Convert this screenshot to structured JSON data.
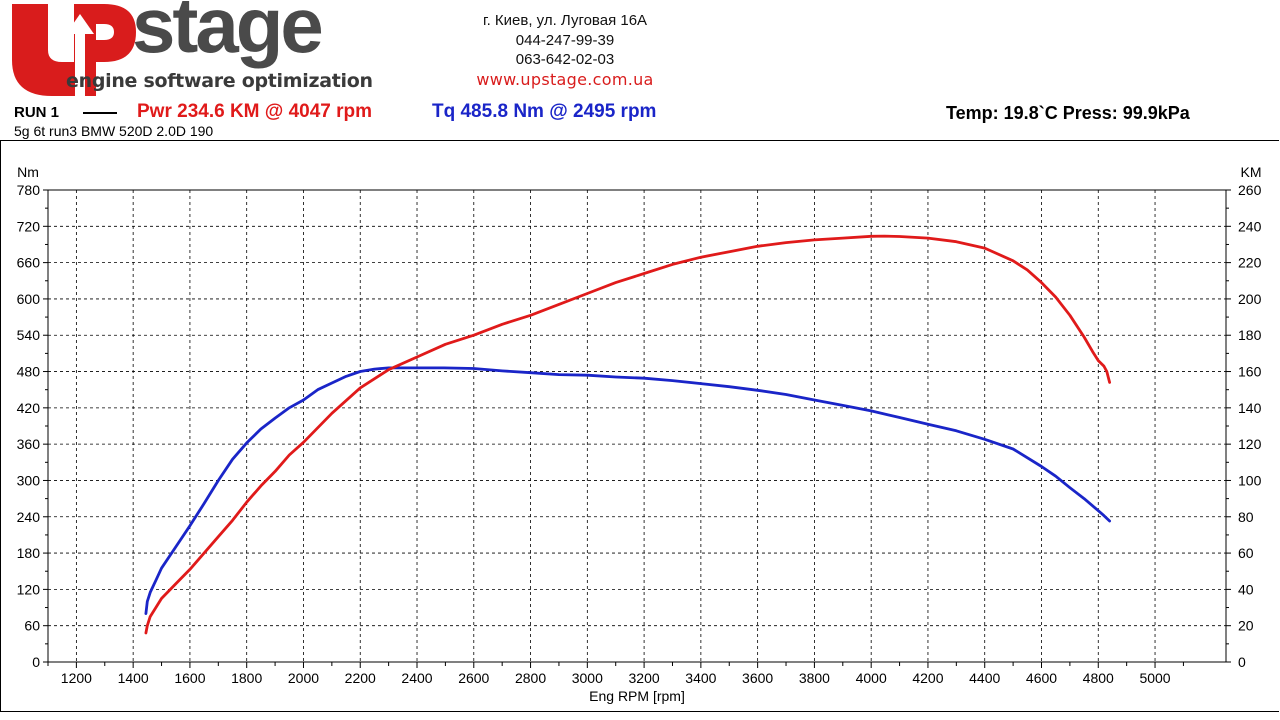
{
  "header": {
    "logo_brand": "stage",
    "logo_tagline": "engine software optimization",
    "contact": {
      "address": "г. Киев, ул. Луговая 16А",
      "phone1": "044-247-99-39",
      "phone2": "063-642-02-03",
      "website": "www.upstage.com.ua"
    }
  },
  "run": {
    "label": "RUN 1",
    "power_summary": "Pwr  234.6 KM @ 4047 rpm",
    "torque_summary": "Tq 485.8 Nm @ 2495 rpm",
    "environment": "Temp: 19.8`C    Press: 99.9kPa",
    "car": "5g 6t run3 BMW 520D 2.0D 190"
  },
  "colors": {
    "power": "#e01a1a",
    "torque": "#1a25c8",
    "brand_red": "#d91c1c",
    "logo_gray": "#4a4a4a"
  },
  "chart_data": {
    "type": "line",
    "xlabel": "Eng RPM [rpm]",
    "ylabel_left": "Nm",
    "ylabel_right": "KM",
    "xlim": [
      1100,
      5250
    ],
    "x_ticks": [
      1200,
      1400,
      1600,
      1800,
      2000,
      2200,
      2400,
      2600,
      2800,
      3000,
      3200,
      3400,
      3600,
      3800,
      4000,
      4200,
      4400,
      4600,
      4800,
      5000
    ],
    "ylim_left": [
      0,
      780
    ],
    "y_ticks_left": [
      0,
      60,
      120,
      180,
      240,
      300,
      360,
      420,
      480,
      540,
      600,
      660,
      720,
      780
    ],
    "ylim_right": [
      0,
      260
    ],
    "y_ticks_right": [
      0,
      20,
      40,
      60,
      80,
      100,
      120,
      140,
      160,
      180,
      200,
      220,
      240,
      260
    ],
    "grid": true,
    "series": [
      {
        "name": "Tq",
        "axis": "left",
        "color": "#1a25c8",
        "x": [
          1445,
          1450,
          1460,
          1480,
          1500,
          1550,
          1600,
          1650,
          1700,
          1750,
          1800,
          1850,
          1900,
          1950,
          2000,
          2050,
          2100,
          2150,
          2200,
          2250,
          2300,
          2350,
          2400,
          2495,
          2600,
          2700,
          2800,
          2900,
          3000,
          3100,
          3200,
          3300,
          3400,
          3500,
          3600,
          3700,
          3800,
          3900,
          4000,
          4100,
          4200,
          4300,
          4400,
          4500,
          4600,
          4650,
          4700,
          4750,
          4800,
          4820,
          4840
        ],
        "y": [
          80,
          100,
          115,
          135,
          155,
          190,
          225,
          262,
          300,
          335,
          362,
          385,
          403,
          420,
          433,
          450,
          461,
          472,
          480,
          484,
          486,
          486,
          486,
          486,
          485,
          481,
          478,
          475,
          474,
          471,
          469,
          465,
          460,
          455,
          449,
          442,
          433,
          424,
          415,
          404,
          393,
          382,
          368,
          352,
          323,
          307,
          288,
          270,
          250,
          242,
          233
        ]
      },
      {
        "name": "Pwr",
        "axis": "right",
        "color": "#e01a1a",
        "x": [
          1445,
          1450,
          1460,
          1480,
          1500,
          1550,
          1600,
          1650,
          1700,
          1750,
          1800,
          1850,
          1900,
          1950,
          2000,
          2100,
          2200,
          2300,
          2400,
          2500,
          2600,
          2700,
          2800,
          2900,
          3000,
          3100,
          3200,
          3300,
          3400,
          3500,
          3600,
          3700,
          3800,
          3900,
          4000,
          4047,
          4100,
          4200,
          4300,
          4400,
          4500,
          4550,
          4600,
          4650,
          4700,
          4750,
          4780,
          4800,
          4820,
          4830,
          4840
        ],
        "y": [
          16,
          20,
          25,
          30,
          35,
          43,
          51,
          60,
          69,
          78,
          88,
          97,
          105,
          114,
          121,
          137,
          151,
          161,
          168,
          175,
          180,
          186,
          191,
          197,
          203,
          209,
          214,
          219,
          223,
          226,
          229,
          231,
          232.5,
          233.5,
          234.5,
          234.6,
          234.4,
          233.5,
          231.5,
          228,
          221,
          216,
          209,
          201,
          191,
          179,
          171,
          166,
          163,
          160,
          154
        ]
      }
    ]
  }
}
